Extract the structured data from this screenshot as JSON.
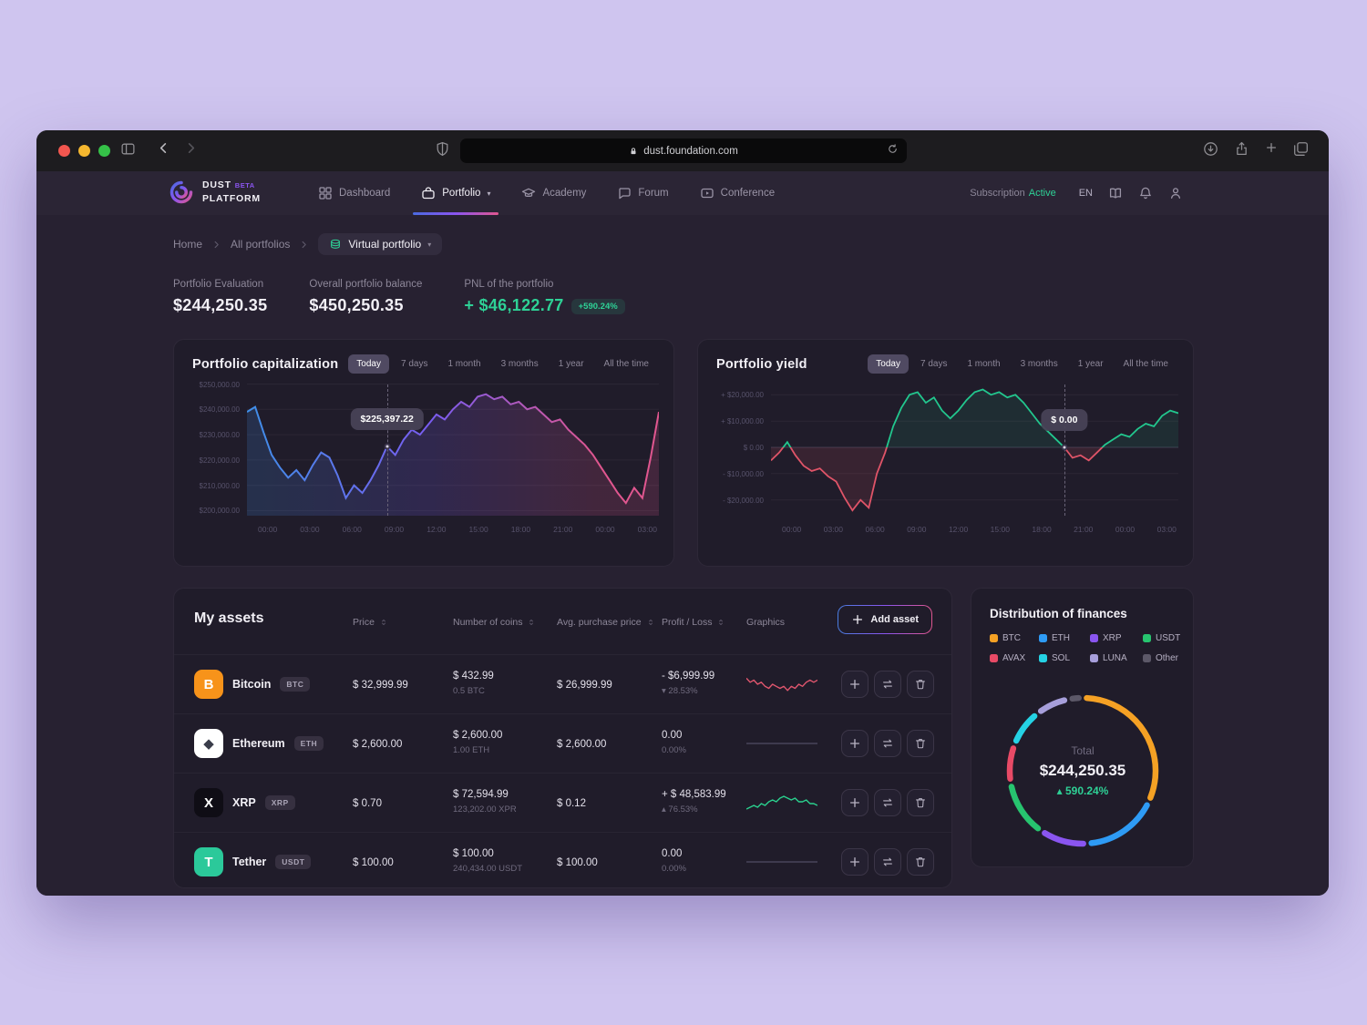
{
  "browser": {
    "url": "dust.foundation.com"
  },
  "nav": {
    "brand_line1": "DUST",
    "brand_beta": "BETA",
    "brand_line2": "PLATFORM",
    "items": [
      {
        "label": "Dashboard",
        "icon": "grid",
        "active": false
      },
      {
        "label": "Portfolio",
        "icon": "briefcase",
        "active": true,
        "caret": true
      },
      {
        "label": "Academy",
        "icon": "academy",
        "active": false
      },
      {
        "label": "Forum",
        "icon": "chat",
        "active": false
      },
      {
        "label": "Conference",
        "icon": "video",
        "active": false
      }
    ],
    "subscription_label": "Subscription",
    "subscription_status": "Active",
    "language": "EN"
  },
  "breadcrumb": {
    "links": [
      "Home",
      "All portfolios"
    ],
    "current": "Virtual portfolio"
  },
  "stats": [
    {
      "label": "Portfolio Evaluation",
      "value": "$244,250.35",
      "positive": false
    },
    {
      "label": "Overall portfolio balance",
      "value": "$450,250.35",
      "positive": false
    },
    {
      "label": "PNL of the portfolio",
      "value": "+ $46,122.77",
      "badge": "+590.24%",
      "positive": true
    }
  ],
  "time_tabs": [
    "Today",
    "7 days",
    "1 month",
    "3 months",
    "1 year",
    "All the time"
  ],
  "active_tab": "Today",
  "chart_data": [
    {
      "type": "area",
      "title": "Portfolio capitalization",
      "x_ticks": [
        "00:00",
        "03:00",
        "06:00",
        "09:00",
        "12:00",
        "15:00",
        "18:00",
        "21:00",
        "00:00",
        "03:00"
      ],
      "y_ticks": [
        "$250,000.00",
        "$240,000.00",
        "$230,000.00",
        "$220,000.00",
        "$210,000.00",
        "$200,000.00"
      ],
      "y_tick_values": [
        250000,
        240000,
        230000,
        220000,
        210000,
        200000
      ],
      "ylim": [
        198000,
        252000
      ],
      "values": [
        239000,
        241000,
        231000,
        222000,
        217000,
        213000,
        216000,
        212000,
        218000,
        223000,
        221000,
        214000,
        205000,
        210000,
        207000,
        212000,
        218000,
        225400,
        222000,
        228000,
        232000,
        230000,
        234000,
        238000,
        236000,
        240000,
        243000,
        241000,
        245000,
        246000,
        244000,
        245000,
        242000,
        243000,
        240000,
        241000,
        238000,
        235000,
        236000,
        232000,
        229000,
        226000,
        222000,
        217000,
        212000,
        207000,
        203000,
        209000,
        205000,
        221000,
        239000
      ],
      "tooltip": {
        "label": "$225,397.22",
        "index": 17
      },
      "line_gradient": [
        "#3f8fe8",
        "#7a5cf0",
        "#e0568f"
      ]
    },
    {
      "type": "area",
      "title": "Portfolio yield",
      "x_ticks": [
        "00:00",
        "03:00",
        "06:00",
        "09:00",
        "12:00",
        "15:00",
        "18:00",
        "21:00",
        "00:00",
        "03:00"
      ],
      "y_ticks": [
        "+ $20,000.00",
        "+ $10,000.00",
        "$ 0.00",
        "- $10,000.00",
        "- $20,000.00"
      ],
      "y_tick_values": [
        20000,
        10000,
        0,
        -10000,
        -20000
      ],
      "ylim": [
        -26000,
        26000
      ],
      "values": [
        -5000,
        -2000,
        2000,
        -3000,
        -7000,
        -9000,
        -8000,
        -11000,
        -13000,
        -19000,
        -24000,
        -20000,
        -23000,
        -10000,
        -2000,
        8000,
        15000,
        20000,
        21000,
        17000,
        19000,
        14000,
        11000,
        14000,
        18000,
        21000,
        22000,
        20000,
        21000,
        19000,
        20000,
        17000,
        13000,
        9000,
        6000,
        3000,
        0,
        -4000,
        -3000,
        -5000,
        -2000,
        1000,
        3000,
        5000,
        4000,
        7000,
        9000,
        8000,
        12000,
        14000,
        13000
      ],
      "tooltip": {
        "label": "$ 0.00",
        "index": 36
      },
      "pos_color": "#22c78e",
      "neg_color": "#e05468"
    },
    {
      "type": "donut",
      "title": "Distribution of finances",
      "segments": [
        {
          "label": "BTC",
          "value": 30,
          "color": "#f5a124"
        },
        {
          "label": "ETH",
          "value": 16,
          "color": "#2e9bf5"
        },
        {
          "label": "XRP",
          "value": 10,
          "color": "#8a55f0"
        },
        {
          "label": "USDT",
          "value": 12,
          "color": "#27c46f"
        },
        {
          "label": "AVAX",
          "value": 8,
          "color": "#e84a66"
        },
        {
          "label": "SOL",
          "value": 8,
          "color": "#25d2e4"
        },
        {
          "label": "LUNA",
          "value": 7,
          "color": "#a79fdb"
        },
        {
          "label": "Other",
          "value": 3,
          "color": "#5c5868"
        }
      ],
      "total_label": "Total",
      "total": "$244,250.35",
      "change_prefix": "▴",
      "change": "590.24%"
    }
  ],
  "assets": {
    "title": "My assets",
    "add_label": "Add asset",
    "columns": [
      {
        "label": "Price",
        "sortable": true
      },
      {
        "label": "Number of coins",
        "sortable": true
      },
      {
        "label": "Avg. purchase price",
        "sortable": true
      },
      {
        "label": "Profit / Loss",
        "sortable": true
      },
      {
        "label": "Graphics",
        "sortable": false
      }
    ],
    "rows": [
      {
        "name": "Bitcoin",
        "ticker": "BTC",
        "icon_bg": "#f7931a",
        "icon_fg": "#ffffff",
        "glyph": "B",
        "price": "$ 32,999.99",
        "coins_value": "$ 432.99",
        "coins_sub": "0.5 BTC",
        "avg_price": "$ 26,999.99",
        "pl": "- $6,999.99",
        "pl_pct": "28.53%",
        "pl_dir": "down",
        "spark": {
          "color": "#e0566e",
          "values": [
            8,
            6,
            7,
            5,
            6,
            4,
            3,
            5,
            4,
            3,
            4,
            2,
            4,
            3,
            5,
            4,
            6,
            7,
            6,
            7
          ]
        }
      },
      {
        "name": "Ethereum",
        "ticker": "ETH",
        "icon_bg": "#ffffff",
        "icon_fg": "#3a3d4a",
        "glyph": "◆",
        "price": "$ 2,600.00",
        "coins_value": "$ 2,600.00",
        "coins_sub": "1.00 ETH",
        "avg_price": "$ 2,600.00",
        "pl": "0.00",
        "pl_pct": "0.00%",
        "pl_dir": "flat",
        "spark": {
          "color": "#49445a",
          "values": [
            5,
            5,
            5,
            5,
            5,
            5,
            5,
            5,
            5,
            5
          ]
        }
      },
      {
        "name": "XRP",
        "ticker": "XRP",
        "icon_bg": "#0f0d15",
        "icon_fg": "#ffffff",
        "glyph": "X",
        "price": "$ 0.70",
        "coins_value": "$ 72,594.99",
        "coins_sub": "123,202.00 XPR",
        "avg_price": "$ 0.12",
        "pl": "+ $ 48,583.99",
        "pl_pct": "76.53%",
        "pl_dir": "up",
        "spark": {
          "color": "#2ad18e",
          "values": [
            2,
            3,
            4,
            3,
            5,
            4,
            6,
            7,
            6,
            8,
            9,
            8,
            7,
            8,
            6,
            6,
            7,
            5,
            5,
            4
          ]
        }
      },
      {
        "name": "Tether",
        "ticker": "USDT",
        "icon_bg": "#2bc99a",
        "icon_fg": "#ffffff",
        "glyph": "T",
        "price": "$ 100.00",
        "coins_value": "$ 100.00",
        "coins_sub": "240,434.00 USDT",
        "avg_price": "$ 100.00",
        "pl": "0.00",
        "pl_pct": "0.00%",
        "pl_dir": "flat",
        "spark": {
          "color": "#49445a",
          "values": [
            5,
            5,
            5,
            5,
            5,
            5,
            5,
            5,
            5,
            5
          ]
        }
      }
    ]
  },
  "distribution": {
    "title": "Distribution of finances",
    "total_label": "Total",
    "total": "$244,250.35",
    "change_prefix": "▴",
    "change": "590.24%"
  },
  "colors": {
    "accent_green": "#2ed196",
    "accent_red": "#e0566e",
    "gradient": [
      "#4a6ae0",
      "#8a55f0",
      "#e0568f"
    ]
  }
}
